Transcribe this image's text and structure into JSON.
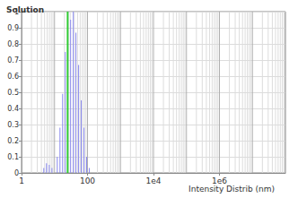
{
  "chart_data": {
    "type": "histogram",
    "title": "Solution",
    "x_label": "Intensity Distrib (nm)",
    "bins": [
      4.3,
      5.2,
      6.3,
      7.6,
      9.1,
      11.0,
      13.3,
      16.0,
      19.3,
      23.2,
      28.0,
      33.7,
      40.6,
      48.9,
      58.9,
      71.0,
      85.5,
      103,
      124
    ],
    "counts": [
      0.03,
      0.06,
      0.05,
      0.03,
      0,
      0.1,
      0.28,
      0.49,
      0.75,
      1.0,
      0.95,
      1.0,
      0.87,
      0.67,
      0.45,
      0.28,
      0.1,
      0.03
    ],
    "color": "#8a8aee",
    "vline": {
      "x": 25,
      "color": "#33cc33"
    },
    "log": "x",
    "xlim": [
      1,
      100000000
    ],
    "xticks": [
      1,
      100,
      {
        "value": 10000,
        "label": "1e4"
      },
      {
        "value": 1000000,
        "label": "1e6"
      }
    ],
    "ylim": [
      0,
      1
    ],
    "yticks": [
      0,
      0.1,
      0.2,
      0.3,
      0.4,
      0.5,
      0.6,
      0.7,
      0.8,
      0.9,
      1
    ],
    "grid": true
  }
}
